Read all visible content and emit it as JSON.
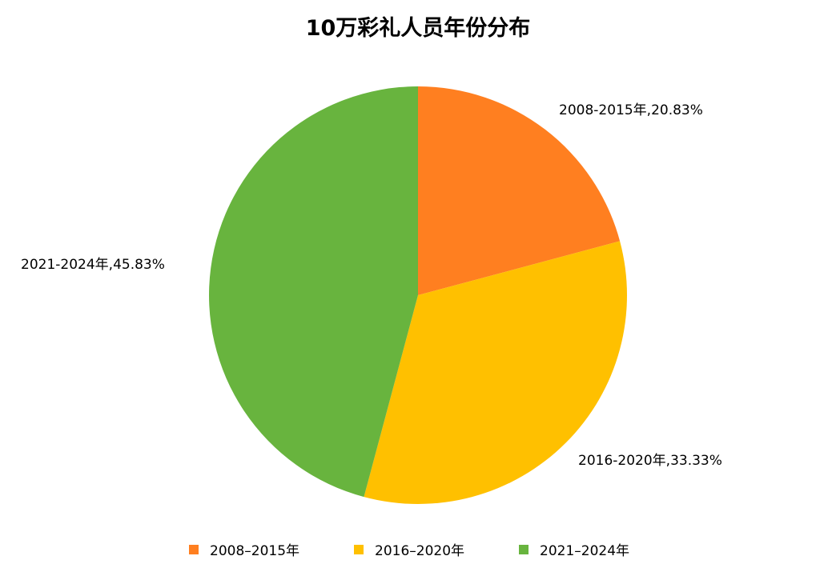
{
  "chart_data": {
    "type": "pie",
    "title": "10万彩礼人员年份分布",
    "start_angle_deg": 0,
    "direction": "clockwise",
    "legend_position": "bottom",
    "slices": [
      {
        "name": "2008-2015年",
        "value": 20.83,
        "color": "#ff7f20",
        "label": "2008-2015年,20.83%",
        "legend_label": "2008–2015年"
      },
      {
        "name": "2016-2020年",
        "value": 33.33,
        "color": "#ffc000",
        "label": "2016-2020年,33.33%",
        "legend_label": "2016–2020年"
      },
      {
        "name": "2021-2024年",
        "value": 45.83,
        "color": "#68b43e",
        "label": "2021-2024年,45.83%",
        "legend_label": "2021–2024年"
      }
    ]
  }
}
